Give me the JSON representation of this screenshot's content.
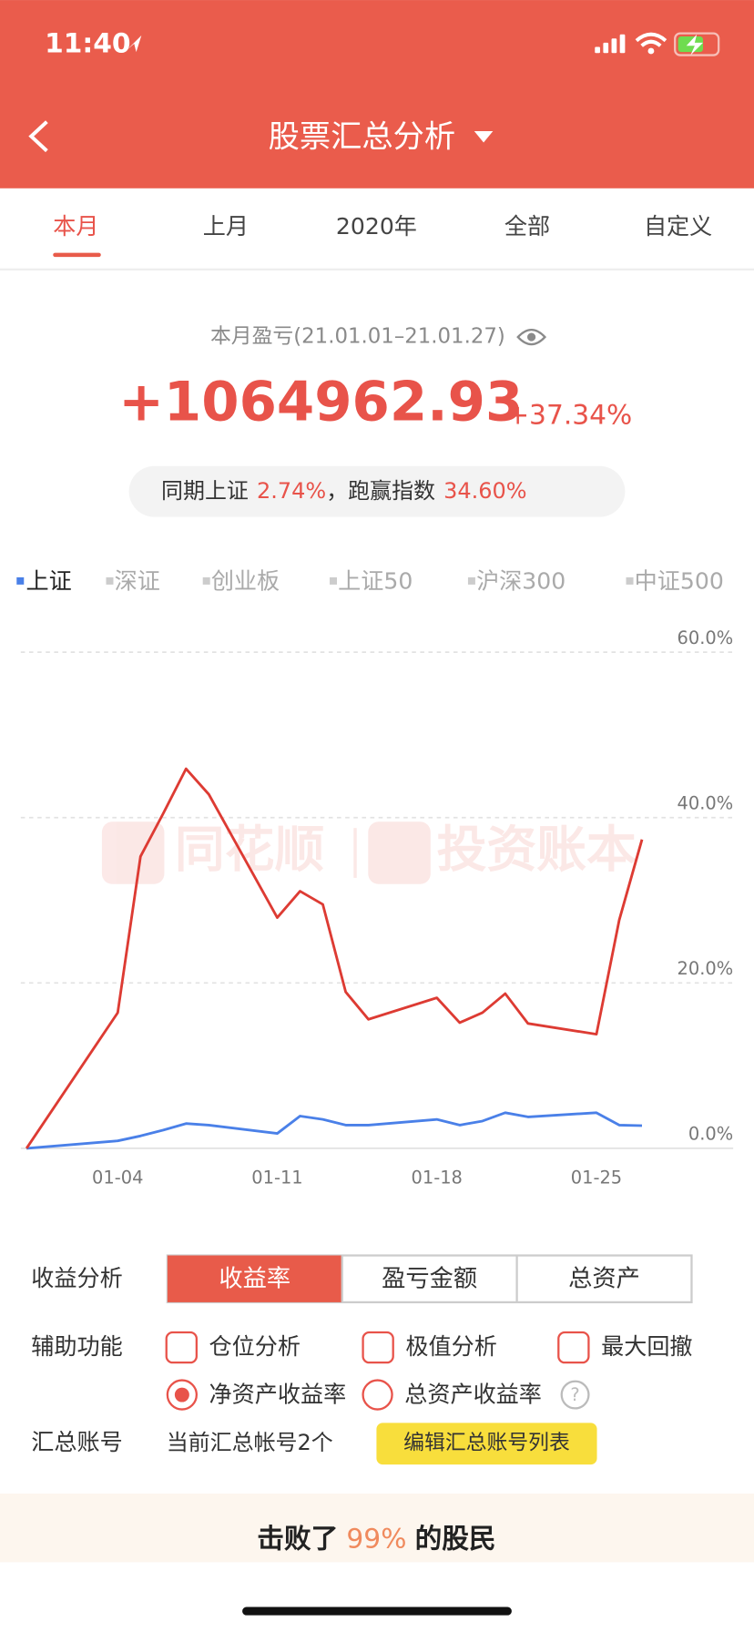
{
  "status_bar": {
    "time": "11:40"
  },
  "header": {
    "title": "股票汇总分析"
  },
  "tabs": [
    "本月",
    "上月",
    "2020年",
    "全部",
    "自定义"
  ],
  "summary": {
    "label": "本月盈亏(21.01.01–21.01.27)",
    "amount": "+1064962.93",
    "percent": "+37.34%",
    "compare": [
      "同期上证",
      "2.74%",
      "，跑赢指数",
      "34.60%"
    ]
  },
  "index_tabs": [
    "深证",
    "创业板",
    "上证50",
    "沪深300",
    "中证500"
  ],
  "watermark": [
    "同花顺",
    "投资账本"
  ],
  "chart_data": {
    "type": "line",
    "x": [
      0,
      4,
      5,
      6,
      7,
      8,
      11,
      12,
      13,
      14,
      15,
      18,
      19,
      20,
      21,
      22,
      25,
      26,
      27
    ],
    "xlim": [
      -0.25,
      31
    ],
    "xticks": [
      {
        "value": 4,
        "label": "01-04"
      },
      {
        "value": 11,
        "label": "01-11"
      },
      {
        "value": 18,
        "label": "01-18"
      },
      {
        "value": 25,
        "label": "01-25"
      }
    ],
    "ylim": [
      0,
      60
    ],
    "yticks": [
      {
        "value": 0,
        "label": "0.0%"
      },
      {
        "value": 20,
        "label": "20.0%"
      },
      {
        "value": 40,
        "label": "40.0%"
      },
      {
        "value": 60,
        "label": "60.0%"
      }
    ],
    "grid": true,
    "series": [
      {
        "color": "#dd3b33",
        "values": [
          0,
          16.4,
          35.3,
          40.5,
          45.9,
          42.8,
          27.9,
          31.1,
          29.5,
          18.9,
          15.6,
          18.2,
          15.2,
          16.4,
          18.7,
          15.1,
          13.8,
          27.6,
          37.34
        ]
      },
      {
        "name": "上证",
        "color": "#4a80e8",
        "values": [
          0,
          0.9,
          1.5,
          2.2,
          3.0,
          2.8,
          1.8,
          3.9,
          3.5,
          2.8,
          2.8,
          3.5,
          2.8,
          3.3,
          4.3,
          3.8,
          4.3,
          2.8,
          2.74
        ]
      }
    ]
  },
  "controls": {
    "analysis": {
      "label": "收益分析",
      "options": [
        "收益率",
        "盈亏金额",
        "总资产"
      ]
    },
    "aux": {
      "label": "辅助功能",
      "checks": [
        "仓位分析",
        "极值分析",
        "最大回撤"
      ],
      "radios": [
        "净资产收益率",
        "总资产收益率"
      ],
      "help": "?"
    },
    "account": {
      "label": "汇总账号",
      "text": "当前汇总帐号2个",
      "button": "编辑汇总账号列表"
    }
  },
  "footer": {
    "parts": [
      "击败了",
      "99%",
      "的股民"
    ]
  }
}
